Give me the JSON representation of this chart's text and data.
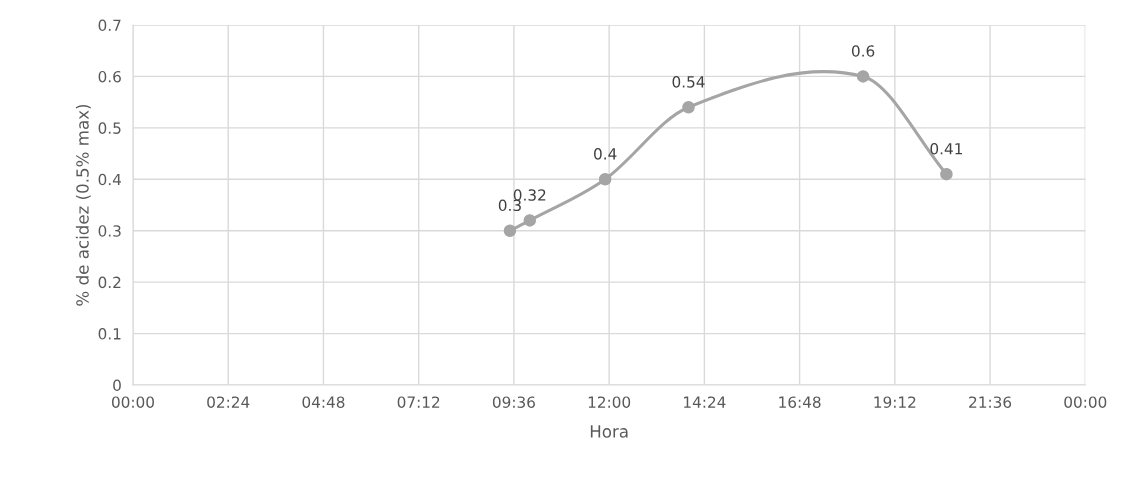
{
  "chart_data": {
    "type": "line",
    "xlabel": "Hora",
    "ylabel": "% de acidez (0.5% max)",
    "x": [
      9.5,
      10.0,
      11.9,
      14.0,
      18.4,
      20.5
    ],
    "values": [
      0.3,
      0.32,
      0.4,
      0.54,
      0.6,
      0.41
    ],
    "color": "#a5a5a5",
    "marker": "circle",
    "line_style": "solid",
    "data_labels": true,
    "grid": true,
    "xlim": [
      0,
      24
    ],
    "xticks": [
      {
        "value": 0,
        "label": "00:00"
      },
      {
        "value": 2.4,
        "label": "02:24"
      },
      {
        "value": 4.8,
        "label": "04:48"
      },
      {
        "value": 7.2,
        "label": "07:12"
      },
      {
        "value": 9.6,
        "label": "09:36"
      },
      {
        "value": 12,
        "label": "12:00"
      },
      {
        "value": 14.4,
        "label": "14:24"
      },
      {
        "value": 16.8,
        "label": "16:48"
      },
      {
        "value": 19.2,
        "label": "19:12"
      },
      {
        "value": 21.6,
        "label": "21:36"
      },
      {
        "value": 24,
        "label": "00:00"
      }
    ],
    "ylim": [
      0,
      0.7
    ],
    "yticks": [
      0,
      0.1,
      0.2,
      0.3,
      0.4,
      0.5,
      0.6,
      0.7
    ]
  }
}
